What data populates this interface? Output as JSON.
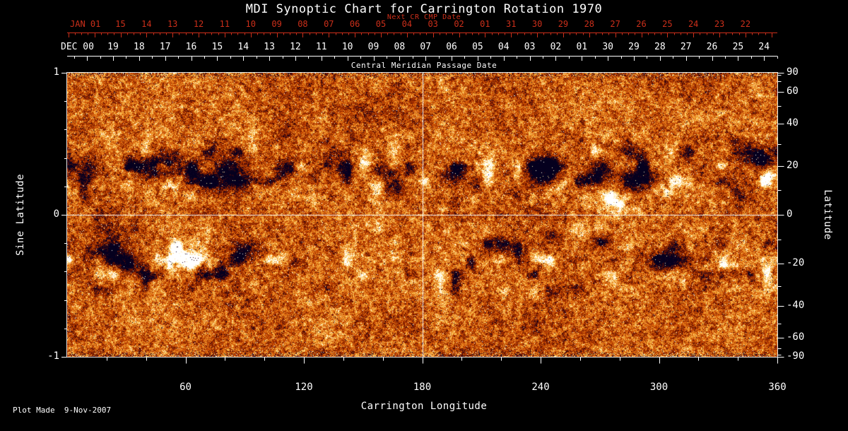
{
  "colors": {
    "background": "#000000",
    "foreground": "#ffffff",
    "red_axis": "#cc2f1a",
    "crosshair": "#f2f2f2"
  },
  "header": {
    "title": "MDI Synoptic Chart for Carrington Rotation 1970"
  },
  "footer": {
    "plot_made": "Plot Made  9-Nov-2007"
  },
  "chart_data": {
    "type": "heatmap",
    "title": "MDI Synoptic Chart for Carrington Rotation 1970",
    "xlabel": "Carrington Longitude",
    "ylabel_left": "Sine Latitude",
    "ylabel_right": "Latitude",
    "xlim": [
      0,
      360
    ],
    "ylim_sine_latitude": [
      -1,
      1
    ],
    "x_tick_values": [
      60,
      120,
      180,
      240,
      300,
      360
    ],
    "x_tick_labels": [
      "60",
      "120",
      "180",
      "240",
      "300",
      "360"
    ],
    "left_tick_values": [
      1,
      0,
      -1
    ],
    "left_tick_labels": [
      "1",
      "0",
      "-1"
    ],
    "right_tick_values": [
      90,
      60,
      40,
      20,
      0,
      -20,
      -40,
      -60,
      -90
    ],
    "right_tick_labels": [
      "90",
      "60",
      "40",
      "20",
      "0",
      "-20",
      "-40",
      "-60",
      "-90"
    ],
    "top_axis_next_cr": {
      "title": "Next CR CMP Date",
      "month_year_label": "JAN 01",
      "day_labels": [
        "15",
        "14",
        "13",
        "12",
        "11",
        "10",
        "09",
        "08",
        "07",
        "06",
        "05",
        "04",
        "03",
        "02",
        "01",
        "31",
        "30",
        "29",
        "28",
        "27",
        "26",
        "25",
        "24",
        "23",
        "22"
      ]
    },
    "top_axis_cmp": {
      "title": "Central Meridian Passage Date",
      "month_year_label": "DEC 00",
      "day_labels": [
        "19",
        "18",
        "17",
        "16",
        "15",
        "14",
        "13",
        "12",
        "11",
        "10",
        "09",
        "08",
        "07",
        "06",
        "05",
        "04",
        "03",
        "02",
        "01",
        "30",
        "29",
        "28",
        "27",
        "26",
        "25",
        "24"
      ]
    },
    "crosshair": {
      "carrington_longitude": 180,
      "sine_latitude": 0
    },
    "noise_seed": 1970,
    "activity_bands_sine_latitude": [
      0.32,
      -0.35
    ],
    "field_palette": [
      [
        0.0,
        "#05001e"
      ],
      [
        0.07,
        "#140428"
      ],
      [
        0.13,
        "#2e0714"
      ],
      [
        0.2,
        "#5a0c00"
      ],
      [
        0.3,
        "#842000"
      ],
      [
        0.4,
        "#ad3300"
      ],
      [
        0.48,
        "#c94a00"
      ],
      [
        0.57,
        "#de6a10"
      ],
      [
        0.67,
        "#ef9126"
      ],
      [
        0.77,
        "#f7b948"
      ],
      [
        0.86,
        "#ffdd80"
      ],
      [
        0.93,
        "#fff0c0"
      ],
      [
        1.0,
        "#ffffff"
      ]
    ],
    "active_regions": [
      {
        "lon": 10,
        "slat": 0.33,
        "rlon": 8,
        "rslat": 0.07,
        "pol": -1,
        "amp": 0.7
      },
      {
        "lon": 47,
        "slat": 0.34,
        "rlon": 11,
        "rslat": 0.09,
        "pol": -1,
        "amp": 1.2
      },
      {
        "lon": 52,
        "slat": 0.22,
        "rlon": 5,
        "rslat": 0.05,
        "pol": 1,
        "amp": 0.8
      },
      {
        "lon": 72,
        "slat": 0.32,
        "rlon": 5,
        "rslat": 0.06,
        "pol": 1,
        "amp": 0.7
      },
      {
        "lon": 79,
        "slat": 0.29,
        "rlon": 10,
        "rslat": 0.1,
        "pol": -1,
        "amp": 1.3
      },
      {
        "lon": 111,
        "slat": 0.32,
        "rlon": 6,
        "rslat": 0.07,
        "pol": -1,
        "amp": 1.0
      },
      {
        "lon": 117,
        "slat": 0.24,
        "rlon": 4,
        "rslat": 0.05,
        "pol": 1,
        "amp": 0.6
      },
      {
        "lon": 151,
        "slat": 0.37,
        "rlon": 4,
        "rslat": 0.04,
        "pol": 1,
        "amp": 0.5
      },
      {
        "lon": 160,
        "slat": 0.31,
        "rlon": 7,
        "rslat": 0.06,
        "pol": -1,
        "amp": 1.0
      },
      {
        "lon": 166,
        "slat": 0.19,
        "rlon": 5,
        "rslat": 0.05,
        "pol": -1,
        "amp": 0.8
      },
      {
        "lon": 194,
        "slat": 0.27,
        "rlon": 6,
        "rslat": 0.06,
        "pol": -1,
        "amp": 0.7
      },
      {
        "lon": 208,
        "slat": 0.22,
        "rlon": 5,
        "rslat": 0.05,
        "pol": -1,
        "amp": 0.6
      },
      {
        "lon": 242,
        "slat": 0.34,
        "rlon": 9,
        "rslat": 0.08,
        "pol": -1,
        "amp": 1.1
      },
      {
        "lon": 249,
        "slat": 0.19,
        "rlon": 5,
        "rslat": 0.05,
        "pol": 1,
        "amp": 0.6
      },
      {
        "lon": 270,
        "slat": 0.32,
        "rlon": 6,
        "rslat": 0.07,
        "pol": -1,
        "amp": 1.0
      },
      {
        "lon": 276,
        "slat": 0.09,
        "rlon": 8,
        "rslat": 0.08,
        "pol": 1,
        "amp": 1.1
      },
      {
        "lon": 290,
        "slat": 0.24,
        "rlon": 9,
        "rslat": 0.08,
        "pol": -1,
        "amp": 1.3
      },
      {
        "lon": 301,
        "slat": 0.17,
        "rlon": 6,
        "rslat": 0.06,
        "pol": 1,
        "amp": 0.9
      },
      {
        "lon": 312,
        "slat": 0.44,
        "rlon": 5,
        "rslat": 0.05,
        "pol": -1,
        "amp": 0.6
      },
      {
        "lon": 351,
        "slat": 0.39,
        "rlon": 8,
        "rslat": 0.07,
        "pol": -1,
        "amp": 1.1
      },
      {
        "lon": 355,
        "slat": 0.27,
        "rlon": 5,
        "rslat": 0.06,
        "pol": 1,
        "amp": 0.9
      },
      {
        "lon": 21,
        "slat": -0.28,
        "rlon": 9,
        "rslat": 0.07,
        "pol": -1,
        "amp": 1.0
      },
      {
        "lon": 32,
        "slat": -0.35,
        "rlon": 6,
        "rslat": 0.06,
        "pol": -1,
        "amp": 0.8
      },
      {
        "lon": 58,
        "slat": -0.33,
        "rlon": 11,
        "rslat": 0.1,
        "pol": 1,
        "amp": 1.2
      },
      {
        "lon": 64,
        "slat": -0.4,
        "rlon": 5,
        "rslat": 0.05,
        "pol": -1,
        "amp": 1.3
      },
      {
        "lon": 90,
        "slat": -0.25,
        "rlon": 6,
        "rslat": 0.06,
        "pol": -1,
        "amp": 0.9
      },
      {
        "lon": 113,
        "slat": -0.33,
        "rlon": 4,
        "rslat": 0.04,
        "pol": -1,
        "amp": 0.6
      },
      {
        "lon": 217,
        "slat": -0.2,
        "rlon": 8,
        "rslat": 0.06,
        "pol": -1,
        "amp": 0.8
      },
      {
        "lon": 227,
        "slat": -0.25,
        "rlon": 5,
        "rslat": 0.05,
        "pol": -1,
        "amp": 0.6
      },
      {
        "lon": 247,
        "slat": -0.15,
        "rlon": 5,
        "rslat": 0.05,
        "pol": -1,
        "amp": 0.7
      },
      {
        "lon": 272,
        "slat": -0.18,
        "rlon": 6,
        "rslat": 0.05,
        "pol": -1,
        "amp": 0.9
      },
      {
        "lon": 305,
        "slat": -0.33,
        "rlon": 9,
        "rslat": 0.08,
        "pol": -1,
        "amp": 1.2
      },
      {
        "lon": 308,
        "slat": -0.43,
        "rlon": 6,
        "rslat": 0.06,
        "pol": 1,
        "amp": 1.0
      },
      {
        "lon": 335,
        "slat": -0.35,
        "rlon": 6,
        "rslat": 0.06,
        "pol": 1,
        "amp": 0.9
      },
      {
        "lon": 338,
        "slat": -0.4,
        "rlon": 5,
        "rslat": 0.05,
        "pol": -1,
        "amp": 0.8
      }
    ]
  }
}
